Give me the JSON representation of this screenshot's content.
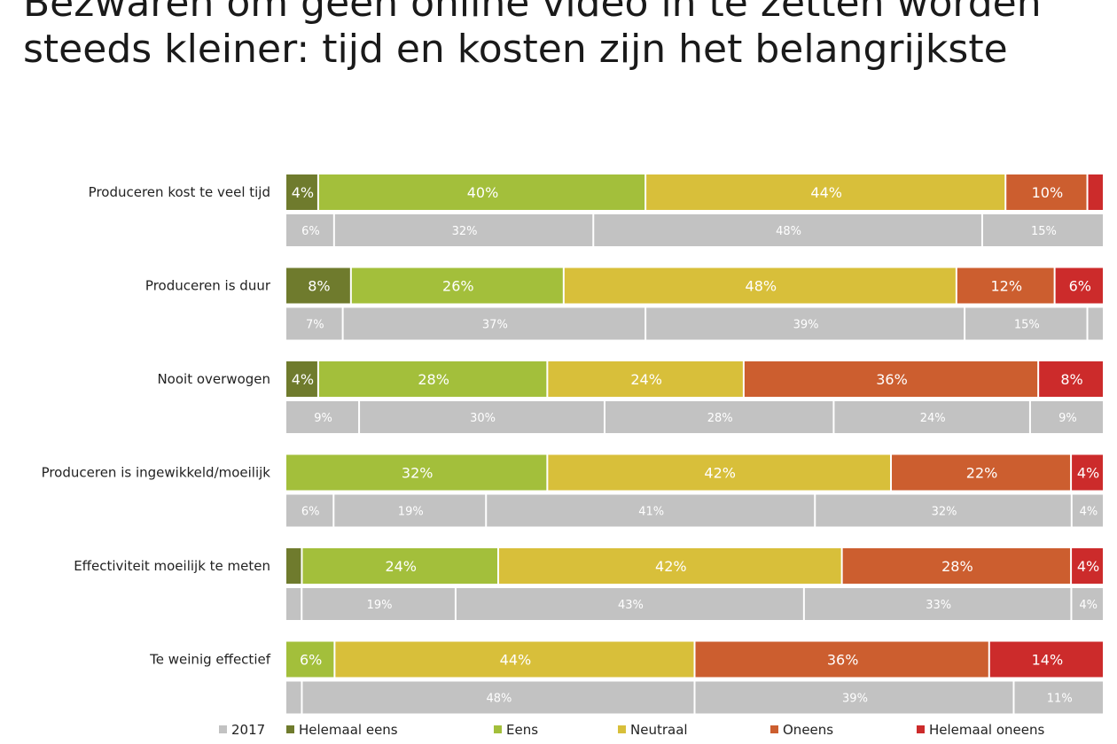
{
  "title_lines": [
    "Bezwaren om geen online video in te zetten worden",
    "steeds kleiner: tijd en kosten zijn het belangrijkste"
  ],
  "colors": {
    "helemaal_eens": "#6f7b2d",
    "eens": "#a3bf3b",
    "neutraal": "#d8bf3a",
    "oneens": "#cc5e2f",
    "helemaal_oneens": "#cc2b2b",
    "y2017": "#c2c2c2"
  },
  "chart_data": {
    "type": "bar",
    "orientation": "horizontal",
    "stacked": true,
    "categories": [
      "Produceren kost te veel tijd",
      "Produceren is duur",
      "Nooit overwogen",
      "Produceren is ingewikkeld/moeilijk",
      "Effectiviteit moeilijk te meten",
      "Te weinig effectief"
    ],
    "series": [
      {
        "name": "Helemaal eens",
        "color_key": "helemaal_eens",
        "values": [
          4,
          8,
          4,
          0,
          2,
          0
        ],
        "labels": [
          "4%",
          "8%",
          "4%",
          "",
          "",
          ""
        ]
      },
      {
        "name": "Eens",
        "color_key": "eens",
        "values": [
          40,
          26,
          28,
          32,
          24,
          6
        ],
        "labels": [
          "40%",
          "26%",
          "28%",
          "32%",
          "24%",
          "6%"
        ]
      },
      {
        "name": "Neutraal",
        "color_key": "neutraal",
        "values": [
          44,
          48,
          24,
          42,
          42,
          44
        ],
        "labels": [
          "44%",
          "48%",
          "24%",
          "42%",
          "42%",
          "44%"
        ]
      },
      {
        "name": "Oneens",
        "color_key": "oneens",
        "values": [
          10,
          12,
          36,
          22,
          28,
          36
        ],
        "labels": [
          "10%",
          "12%",
          "36%",
          "22%",
          "28%",
          "36%"
        ]
      },
      {
        "name": "Helemaal oneens",
        "color_key": "helemaal_oneens",
        "values": [
          2,
          6,
          8,
          4,
          4,
          14
        ],
        "labels": [
          "",
          "6%",
          "8%",
          "4%",
          "4%",
          "14%"
        ]
      }
    ],
    "series_2017": {
      "name": "2017",
      "color_key": "y2017",
      "rows": [
        {
          "values": [
            6,
            32,
            48,
            15
          ],
          "labels": [
            "6%",
            "32%",
            "48%",
            "15%"
          ]
        },
        {
          "values": [
            7,
            37,
            39,
            15,
            2
          ],
          "labels": [
            "7%",
            "37%",
            "39%",
            "15%",
            ""
          ]
        },
        {
          "values": [
            9,
            30,
            28,
            24,
            9
          ],
          "labels": [
            "9%",
            "30%",
            "28%",
            "24%",
            "9%"
          ]
        },
        {
          "values": [
            6,
            19,
            41,
            32,
            4
          ],
          "labels": [
            "6%",
            "19%",
            "41%",
            "32%",
            "4%"
          ]
        },
        {
          "values": [
            2,
            19,
            43,
            33,
            4
          ],
          "labels": [
            "",
            "19%",
            "43%",
            "33%",
            "4%"
          ]
        },
        {
          "values": [
            2,
            48,
            39,
            11
          ],
          "labels": [
            "",
            "48%",
            "39%",
            "11%"
          ]
        }
      ]
    },
    "legend": [
      {
        "name": "2017",
        "color_key": "y2017"
      },
      {
        "name": "Helemaal eens",
        "color_key": "helemaal_eens"
      },
      {
        "name": "Eens",
        "color_key": "eens"
      },
      {
        "name": "Neutraal",
        "color_key": "neutraal"
      },
      {
        "name": "Oneens",
        "color_key": "oneens"
      },
      {
        "name": "Helemaal oneens",
        "color_key": "helemaal_oneens"
      }
    ],
    "legend_position": "bottom",
    "xlim": [
      0,
      100
    ],
    "grid": false
  }
}
